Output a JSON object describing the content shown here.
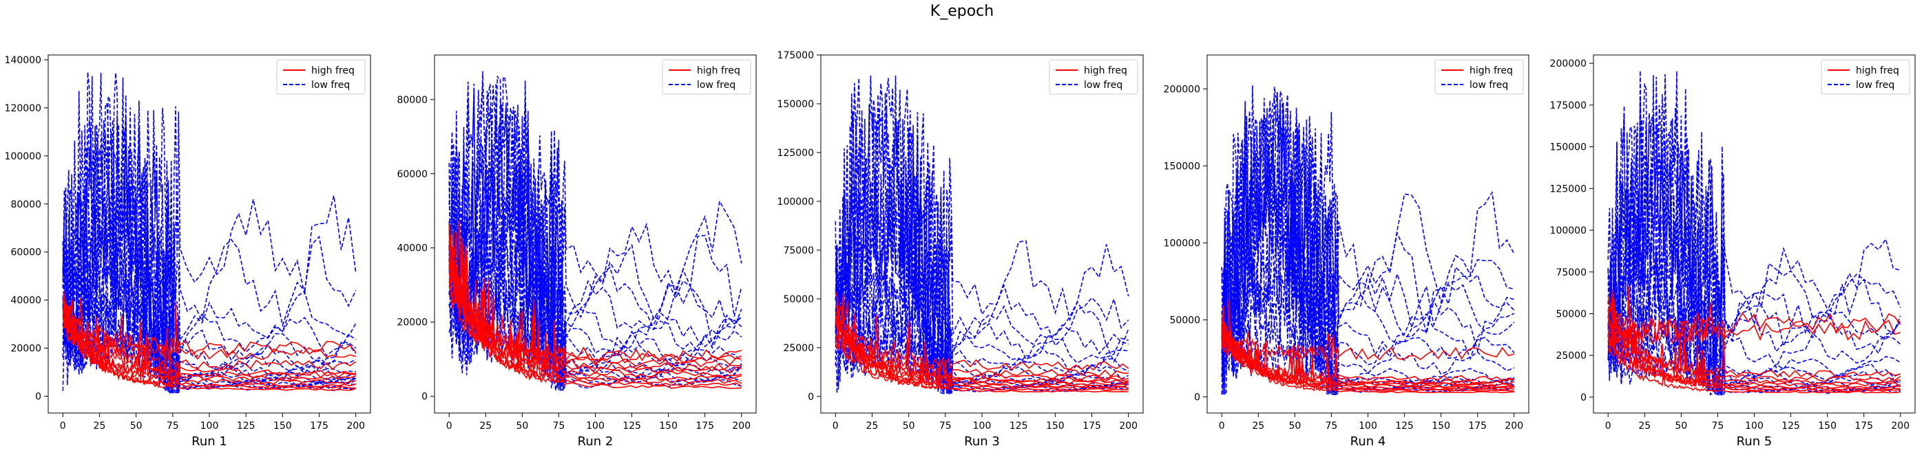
{
  "figure": {
    "title": "K_epoch"
  },
  "chart_data": [
    {
      "type": "line",
      "xlabel": "Run 1",
      "xlim": [
        -10,
        210
      ],
      "ylim": [
        -7000,
        142000
      ],
      "xticks": [
        0,
        25,
        50,
        75,
        100,
        125,
        150,
        175,
        200
      ],
      "yticks": [
        0,
        20000,
        40000,
        60000,
        80000,
        100000,
        120000,
        140000
      ],
      "legend": {
        "position": "top-right",
        "entries": [
          "high freq",
          "low freq"
        ]
      },
      "high_freq": {
        "name": "high freq",
        "color": "#ff0000",
        "line_count": 10,
        "start_range": [
          30000,
          40000
        ],
        "finals": [
          2800,
          3800,
          4500,
          6000,
          7500,
          9000,
          10000,
          13000,
          18000,
          20000
        ]
      },
      "low_freq": {
        "name": "low freq",
        "color": "#0000ff",
        "line_count": 16,
        "style": "dashed",
        "early_peaks": [
          135000,
          124000,
          115000,
          105000,
          95000,
          88000,
          80000,
          70000,
          62000,
          55000,
          48000,
          42000,
          38000,
          34000,
          30000,
          26000
        ],
        "finals": [
          67000,
          53000,
          35000,
          28000,
          22000,
          18000,
          15000,
          12000,
          10000,
          9000,
          8000,
          7000,
          6000,
          5000,
          4500,
          4000
        ]
      }
    },
    {
      "type": "line",
      "xlabel": "Run 2",
      "xlim": [
        -10,
        210
      ],
      "ylim": [
        -4500,
        92000
      ],
      "xticks": [
        0,
        25,
        50,
        75,
        100,
        125,
        150,
        175,
        200
      ],
      "yticks": [
        0,
        20000,
        40000,
        60000,
        80000
      ],
      "legend": {
        "position": "top-right",
        "entries": [
          "high freq",
          "low freq"
        ]
      },
      "high_freq": {
        "name": "high freq",
        "color": "#ff0000",
        "line_count": 10,
        "start_range": [
          30000,
          40000
        ],
        "finals": [
          2500,
          3200,
          4000,
          5000,
          6000,
          7000,
          8000,
          9000,
          10000,
          11000
        ]
      },
      "low_freq": {
        "name": "low freq",
        "color": "#0000ff",
        "line_count": 14,
        "style": "dashed",
        "early_peaks": [
          88000,
          86000,
          80000,
          75000,
          70000,
          63000,
          57000,
          50000,
          45000,
          40000,
          35000,
          30000,
          25000,
          20000
        ],
        "finals": [
          42000,
          35000,
          28000,
          25000,
          20000,
          18000,
          15000,
          12000,
          10000,
          8000,
          7000,
          6000,
          5000,
          4000
        ]
      }
    },
    {
      "type": "line",
      "xlabel": "Run 3",
      "xlim": [
        -10,
        210
      ],
      "ylim": [
        -8500,
        175000
      ],
      "xticks": [
        0,
        25,
        50,
        75,
        100,
        125,
        150,
        175,
        200
      ],
      "yticks": [
        0,
        25000,
        50000,
        75000,
        100000,
        125000,
        150000,
        175000
      ],
      "legend": {
        "position": "top-right",
        "entries": [
          "high freq",
          "low freq"
        ]
      },
      "high_freq": {
        "name": "high freq",
        "color": "#ff0000",
        "line_count": 10,
        "start_range": [
          28000,
          48000
        ],
        "finals": [
          2500,
          3500,
          4500,
          5500,
          6500,
          7500,
          8500,
          10000,
          12000,
          16000
        ]
      },
      "low_freq": {
        "name": "low freq",
        "color": "#0000ff",
        "line_count": 14,
        "style": "dashed",
        "early_peaks": [
          167000,
          158000,
          148000,
          135000,
          120000,
          108000,
          95000,
          80000,
          68000,
          58000,
          50000,
          42000,
          35000,
          28000
        ],
        "finals": [
          65000,
          48000,
          38000,
          32000,
          26000,
          20000,
          16000,
          13000,
          10000,
          8000,
          7000,
          6000,
          5000,
          4000
        ]
      }
    },
    {
      "type": "line",
      "xlabel": "Run 4",
      "xlim": [
        -10,
        210
      ],
      "ylim": [
        -10500,
        222000
      ],
      "xticks": [
        0,
        25,
        50,
        75,
        100,
        125,
        150,
        175,
        200
      ],
      "yticks": [
        0,
        50000,
        100000,
        150000,
        200000
      ],
      "legend": {
        "position": "top-right",
        "entries": [
          "high freq",
          "low freq"
        ]
      },
      "high_freq": {
        "name": "high freq",
        "color": "#ff0000",
        "line_count": 10,
        "start_range": [
          35000,
          50000
        ],
        "finals": [
          3000,
          4000,
          5000,
          6000,
          7000,
          8000,
          9000,
          10000,
          12000,
          28000
        ]
      },
      "low_freq": {
        "name": "low freq",
        "color": "#0000ff",
        "line_count": 14,
        "style": "dashed",
        "early_peaks": [
          210000,
          205000,
          195000,
          185000,
          175000,
          160000,
          145000,
          130000,
          110000,
          95000,
          80000,
          65000,
          50000,
          35000
        ],
        "finals": [
          105000,
          87000,
          70000,
          62000,
          55000,
          45000,
          35000,
          25000,
          15000,
          12000,
          10000,
          8000,
          6000,
          5000
        ]
      }
    },
    {
      "type": "line",
      "xlabel": "Run 5",
      "xlim": [
        -10,
        210
      ],
      "ylim": [
        -9500,
        205000
      ],
      "xticks": [
        0,
        25,
        50,
        75,
        100,
        125,
        150,
        175,
        200
      ],
      "yticks": [
        0,
        25000,
        50000,
        75000,
        100000,
        125000,
        150000,
        175000,
        200000
      ],
      "legend": {
        "position": "top-right",
        "entries": [
          "high freq",
          "low freq"
        ]
      },
      "high_freq": {
        "name": "high freq",
        "color": "#ff0000",
        "line_count": 10,
        "start_range": [
          30000,
          60000
        ],
        "finals": [
          3000,
          4000,
          5000,
          6000,
          7500,
          9000,
          11000,
          14000,
          40000,
          44000
        ]
      },
      "low_freq": {
        "name": "low freq",
        "color": "#0000ff",
        "line_count": 14,
        "style": "dashed",
        "early_peaks": [
          196000,
          185000,
          170000,
          155000,
          140000,
          125000,
          110000,
          95000,
          80000,
          68000,
          56000,
          45000,
          35000,
          25000
        ],
        "finals": [
          78000,
          70000,
          60000,
          48000,
          42000,
          30000,
          20000,
          16000,
          13000,
          10000,
          8000,
          6000,
          5000,
          4000
        ]
      }
    }
  ]
}
